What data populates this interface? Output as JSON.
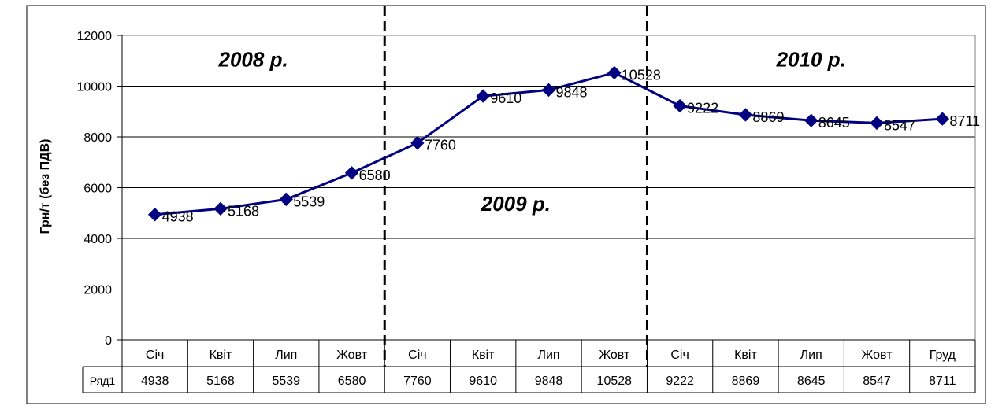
{
  "chart_data": {
    "type": "line",
    "ylabel": "Грн/т (без ПДВ)",
    "xlabel": "",
    "ylim": [
      0,
      12000
    ],
    "yticks": [
      0,
      2000,
      4000,
      6000,
      8000,
      10000,
      12000
    ],
    "grid": true,
    "categories": [
      "Січ",
      "Квіт",
      "Лип",
      "Жовт",
      "Січ",
      "Квіт",
      "Лип",
      "Жовт",
      "Січ",
      "Квіт",
      "Лип",
      "Жовт",
      "Груд"
    ],
    "series": [
      {
        "name": "Ряд1",
        "values": [
          4938,
          5168,
          5539,
          6580,
          7760,
          9610,
          9848,
          10528,
          9222,
          8869,
          8645,
          8547,
          8711
        ],
        "color": "#000080"
      }
    ],
    "annotations": [
      {
        "text": "2008 р.",
        "period": "2008"
      },
      {
        "text": "2009 р.",
        "period": "2009"
      },
      {
        "text": "2010 р.",
        "period": "2010"
      }
    ],
    "data_table": true
  }
}
